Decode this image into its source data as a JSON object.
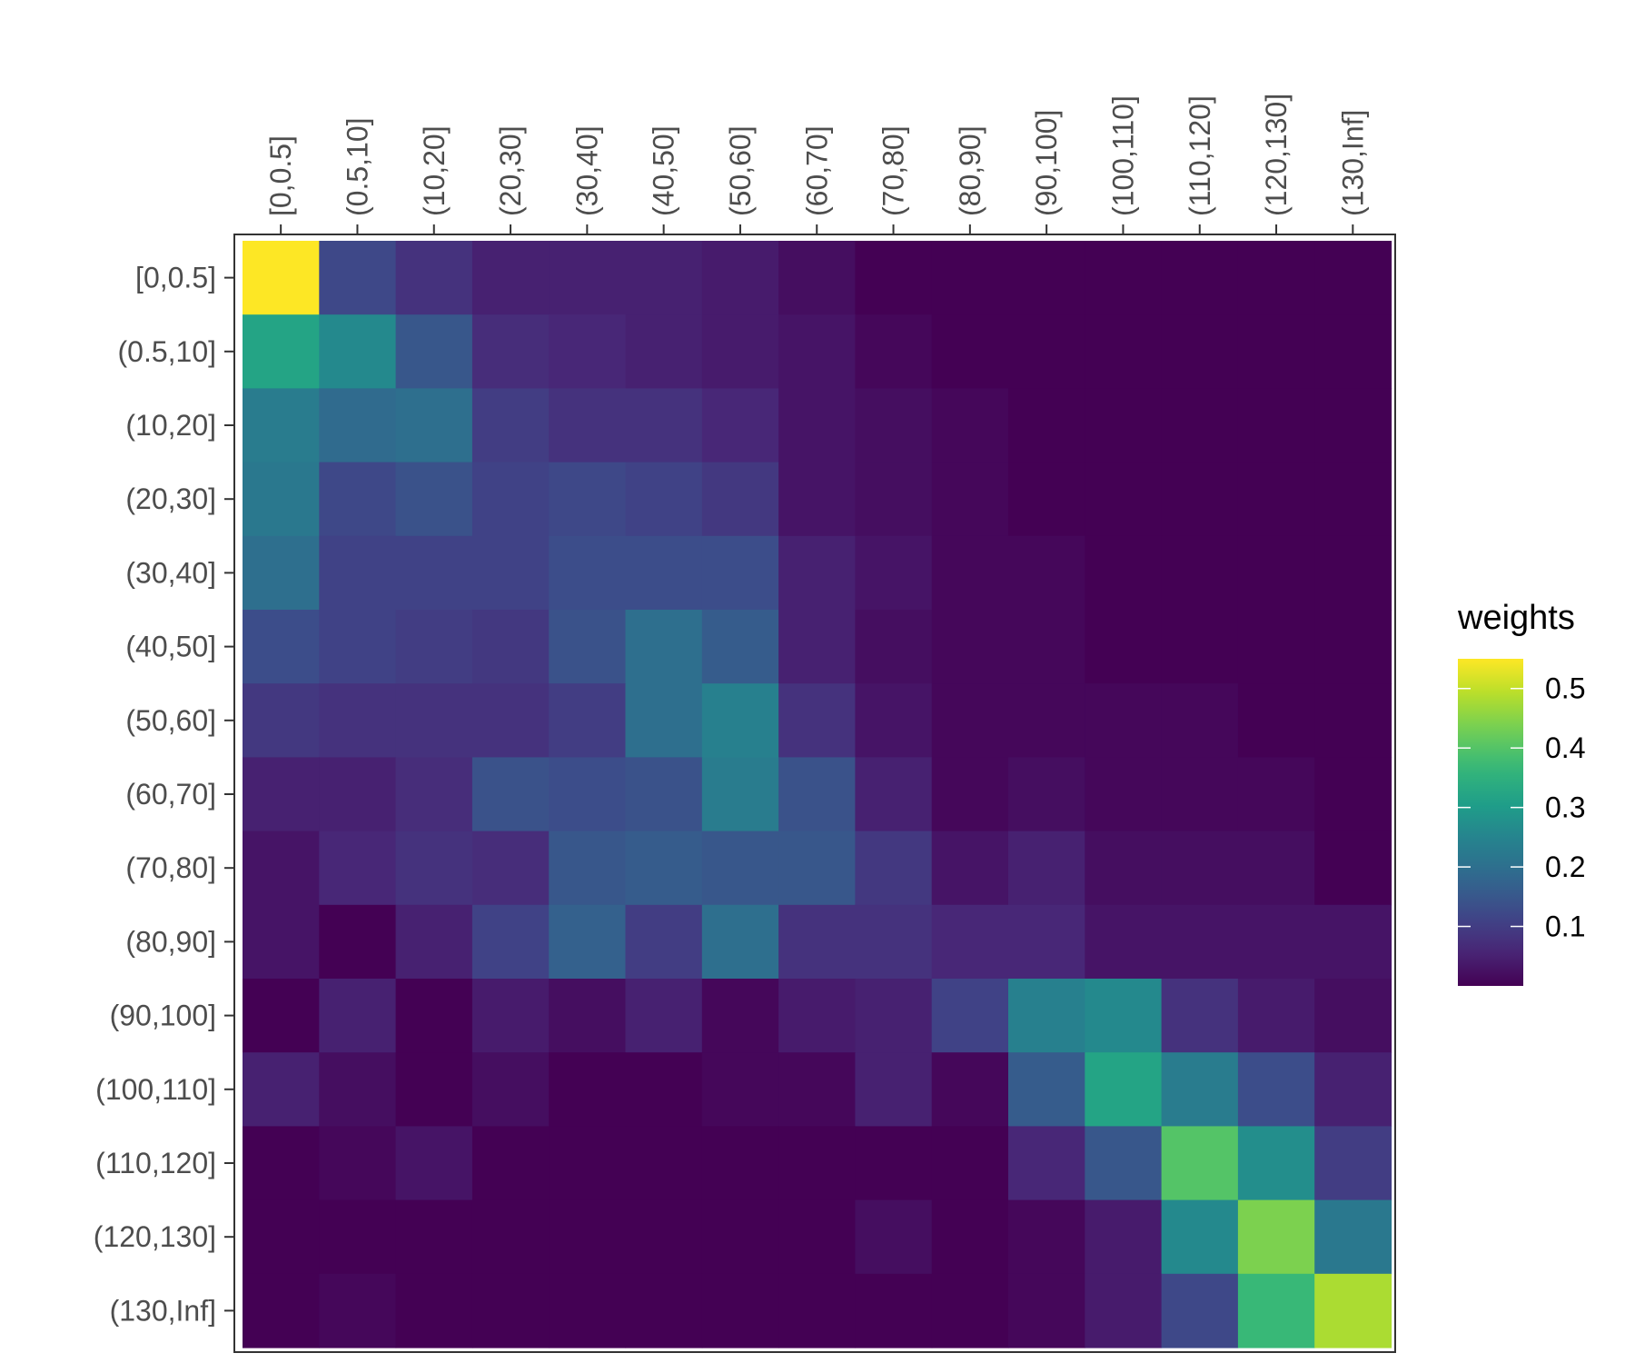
{
  "chart_data": {
    "type": "heatmap",
    "x_categories": [
      "[0,0.5]",
      "(0.5,10]",
      "(10,20]",
      "(20,30]",
      "(30,40]",
      "(40,50]",
      "(50,60]",
      "(60,70]",
      "(70,80]",
      "(80,90]",
      "(90,100]",
      "(100,110]",
      "(110,120]",
      "(120,130]",
      "(130,Inf]"
    ],
    "y_categories": [
      "[0,0.5]",
      "(0.5,10]",
      "(10,20]",
      "(20,30]",
      "(30,40]",
      "(40,50]",
      "(50,60]",
      "(60,70]",
      "(70,80]",
      "(80,90]",
      "(90,100]",
      "(100,110]",
      "(110,120]",
      "(120,130]",
      "(130,Inf]"
    ],
    "x_axis_position": "top",
    "values": [
      [
        0.55,
        0.12,
        0.08,
        0.05,
        0.05,
        0.05,
        0.04,
        0.02,
        0.0,
        0.0,
        0.0,
        0.0,
        0.0,
        0.0,
        0.0
      ],
      [
        0.32,
        0.26,
        0.15,
        0.07,
        0.06,
        0.05,
        0.04,
        0.03,
        0.01,
        0.0,
        0.0,
        0.0,
        0.0,
        0.0,
        0.0
      ],
      [
        0.23,
        0.19,
        0.2,
        0.1,
        0.08,
        0.08,
        0.06,
        0.03,
        0.02,
        0.01,
        0.0,
        0.0,
        0.0,
        0.0,
        0.0
      ],
      [
        0.22,
        0.12,
        0.14,
        0.11,
        0.12,
        0.11,
        0.09,
        0.03,
        0.02,
        0.01,
        0.0,
        0.0,
        0.0,
        0.0,
        0.0
      ],
      [
        0.2,
        0.11,
        0.11,
        0.11,
        0.13,
        0.13,
        0.13,
        0.05,
        0.03,
        0.01,
        0.01,
        0.0,
        0.0,
        0.0,
        0.0
      ],
      [
        0.13,
        0.11,
        0.1,
        0.09,
        0.14,
        0.2,
        0.16,
        0.05,
        0.02,
        0.01,
        0.01,
        0.0,
        0.0,
        0.0,
        0.0
      ],
      [
        0.09,
        0.08,
        0.08,
        0.08,
        0.1,
        0.2,
        0.24,
        0.08,
        0.03,
        0.01,
        0.01,
        0.01,
        0.01,
        0.0,
        0.0
      ],
      [
        0.05,
        0.05,
        0.07,
        0.14,
        0.13,
        0.14,
        0.23,
        0.14,
        0.05,
        0.01,
        0.02,
        0.01,
        0.01,
        0.01,
        0.0
      ],
      [
        0.03,
        0.06,
        0.08,
        0.07,
        0.15,
        0.16,
        0.15,
        0.15,
        0.09,
        0.03,
        0.05,
        0.02,
        0.02,
        0.02,
        0.0
      ],
      [
        0.03,
        0.0,
        0.05,
        0.11,
        0.17,
        0.1,
        0.2,
        0.08,
        0.08,
        0.06,
        0.06,
        0.03,
        0.03,
        0.03,
        0.03
      ],
      [
        0.0,
        0.05,
        0.0,
        0.04,
        0.02,
        0.05,
        0.01,
        0.04,
        0.05,
        0.11,
        0.24,
        0.26,
        0.08,
        0.04,
        0.02
      ],
      [
        0.05,
        0.02,
        0.0,
        0.02,
        0.0,
        0.0,
        0.01,
        0.01,
        0.05,
        0.01,
        0.16,
        0.32,
        0.23,
        0.13,
        0.05
      ],
      [
        0.0,
        0.01,
        0.03,
        0.0,
        0.0,
        0.0,
        0.0,
        0.0,
        0.0,
        0.0,
        0.06,
        0.15,
        0.4,
        0.27,
        0.1
      ],
      [
        0.0,
        0.0,
        0.0,
        0.0,
        0.0,
        0.0,
        0.0,
        0.0,
        0.02,
        0.0,
        0.01,
        0.04,
        0.26,
        0.44,
        0.22
      ],
      [
        0.0,
        0.01,
        0.0,
        0.0,
        0.0,
        0.0,
        0.0,
        0.0,
        0.0,
        0.0,
        0.01,
        0.04,
        0.12,
        0.37,
        0.48
      ]
    ],
    "color_scale": "viridis",
    "color_range": [
      0.0,
      0.55
    ],
    "legend": {
      "title": "weights",
      "ticks": [
        0.1,
        0.2,
        0.3,
        0.4,
        0.5
      ],
      "tick_labels": [
        "0.1",
        "0.2",
        "0.3",
        "0.4",
        "0.5"
      ],
      "placement": "right"
    },
    "grid": false
  }
}
